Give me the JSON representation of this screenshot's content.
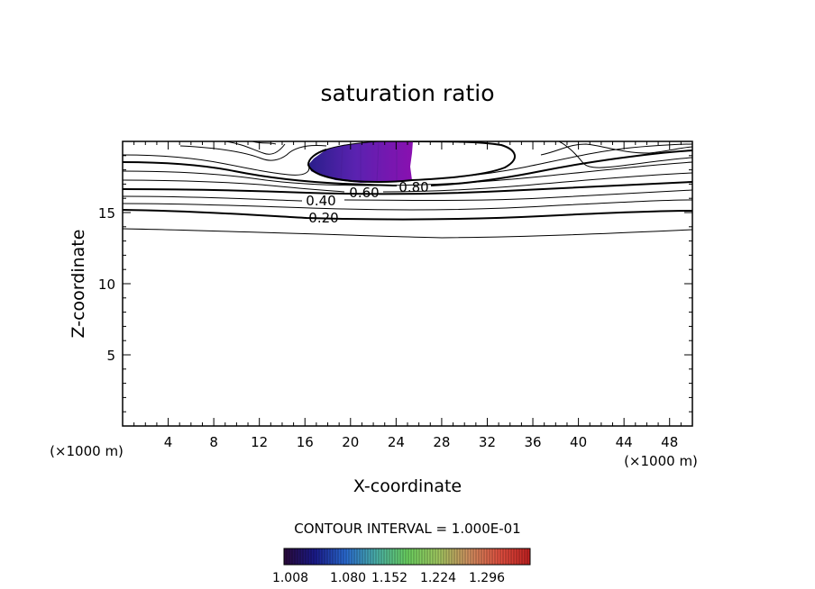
{
  "chart_data": {
    "type": "contour",
    "title": "saturation ratio",
    "xlabel": "X-coordinate",
    "ylabel": "Z-coordinate",
    "x_unit_left": "(×1000 m)",
    "x_unit_right": "(×1000 m)",
    "xlim": [
      0,
      50
    ],
    "ylim": [
      0,
      20
    ],
    "x_ticks": [
      4,
      8,
      12,
      16,
      20,
      24,
      28,
      32,
      36,
      40,
      44,
      48
    ],
    "y_ticks": [
      5,
      10,
      15
    ],
    "contour_labels": [
      {
        "text": "0.20",
        "x": 17.2,
        "z": 14.5
      },
      {
        "text": "0.40",
        "x": 17.0,
        "z": 15.6
      },
      {
        "text": "0.60",
        "x": 21.0,
        "z": 16.1
      },
      {
        "text": "0.80",
        "x": 25.5,
        "z": 16.6
      }
    ],
    "contour_interval_text": "CONTOUR INTERVAL = 1.000E-01",
    "colorbar": {
      "ticks": [
        "1.008",
        "1.080",
        "1.152",
        "1.224",
        "1.296"
      ],
      "colors": [
        "#2b0a3a",
        "#1a1a8a",
        "#2a6ad0",
        "#4ab0a8",
        "#6ad060",
        "#a0c860",
        "#d09060",
        "#e05040",
        "#c02020"
      ]
    },
    "shaded_region": {
      "description_colors": [
        "#2a1e8a",
        "#5a22b0",
        "#8a10b0"
      ]
    }
  }
}
